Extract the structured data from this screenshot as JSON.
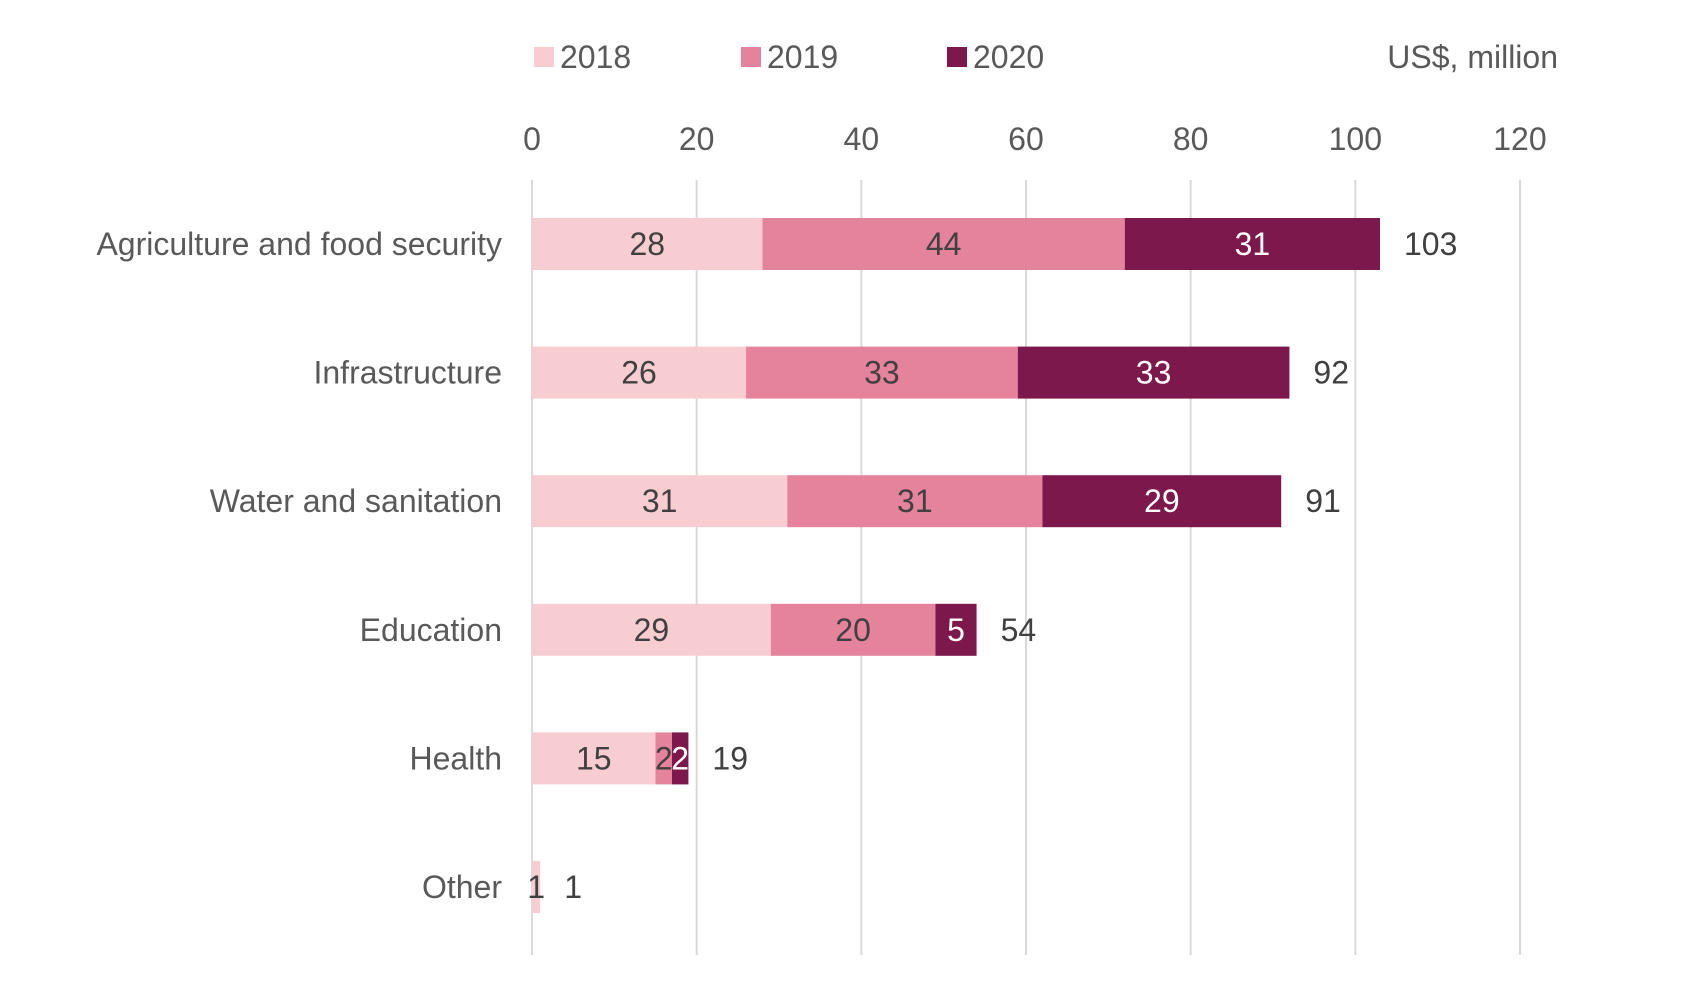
{
  "chart_data": {
    "type": "bar",
    "orientation": "horizontal",
    "stacked": true,
    "unit_label": "US$, million",
    "categories": [
      "Agriculture and food security",
      "Infrastructure",
      "Water and sanitation",
      "Education",
      "Health",
      "Other"
    ],
    "series": [
      {
        "name": "2018",
        "color": "#f8cdd1",
        "values": [
          28,
          26,
          31,
          29,
          15,
          1
        ]
      },
      {
        "name": "2019",
        "color": "#e5839c",
        "values": [
          44,
          33,
          31,
          20,
          2,
          null
        ]
      },
      {
        "name": "2020",
        "color": "#7d184d",
        "values": [
          31,
          33,
          29,
          5,
          2,
          null
        ]
      }
    ],
    "totals": [
      103,
      92,
      91,
      54,
      19,
      1
    ],
    "xlim": [
      0,
      120
    ],
    "xticks": [
      0,
      20,
      40,
      60,
      80,
      100,
      120
    ],
    "x_axis_position": "top",
    "grid": "vertical",
    "legend_position": "top"
  }
}
